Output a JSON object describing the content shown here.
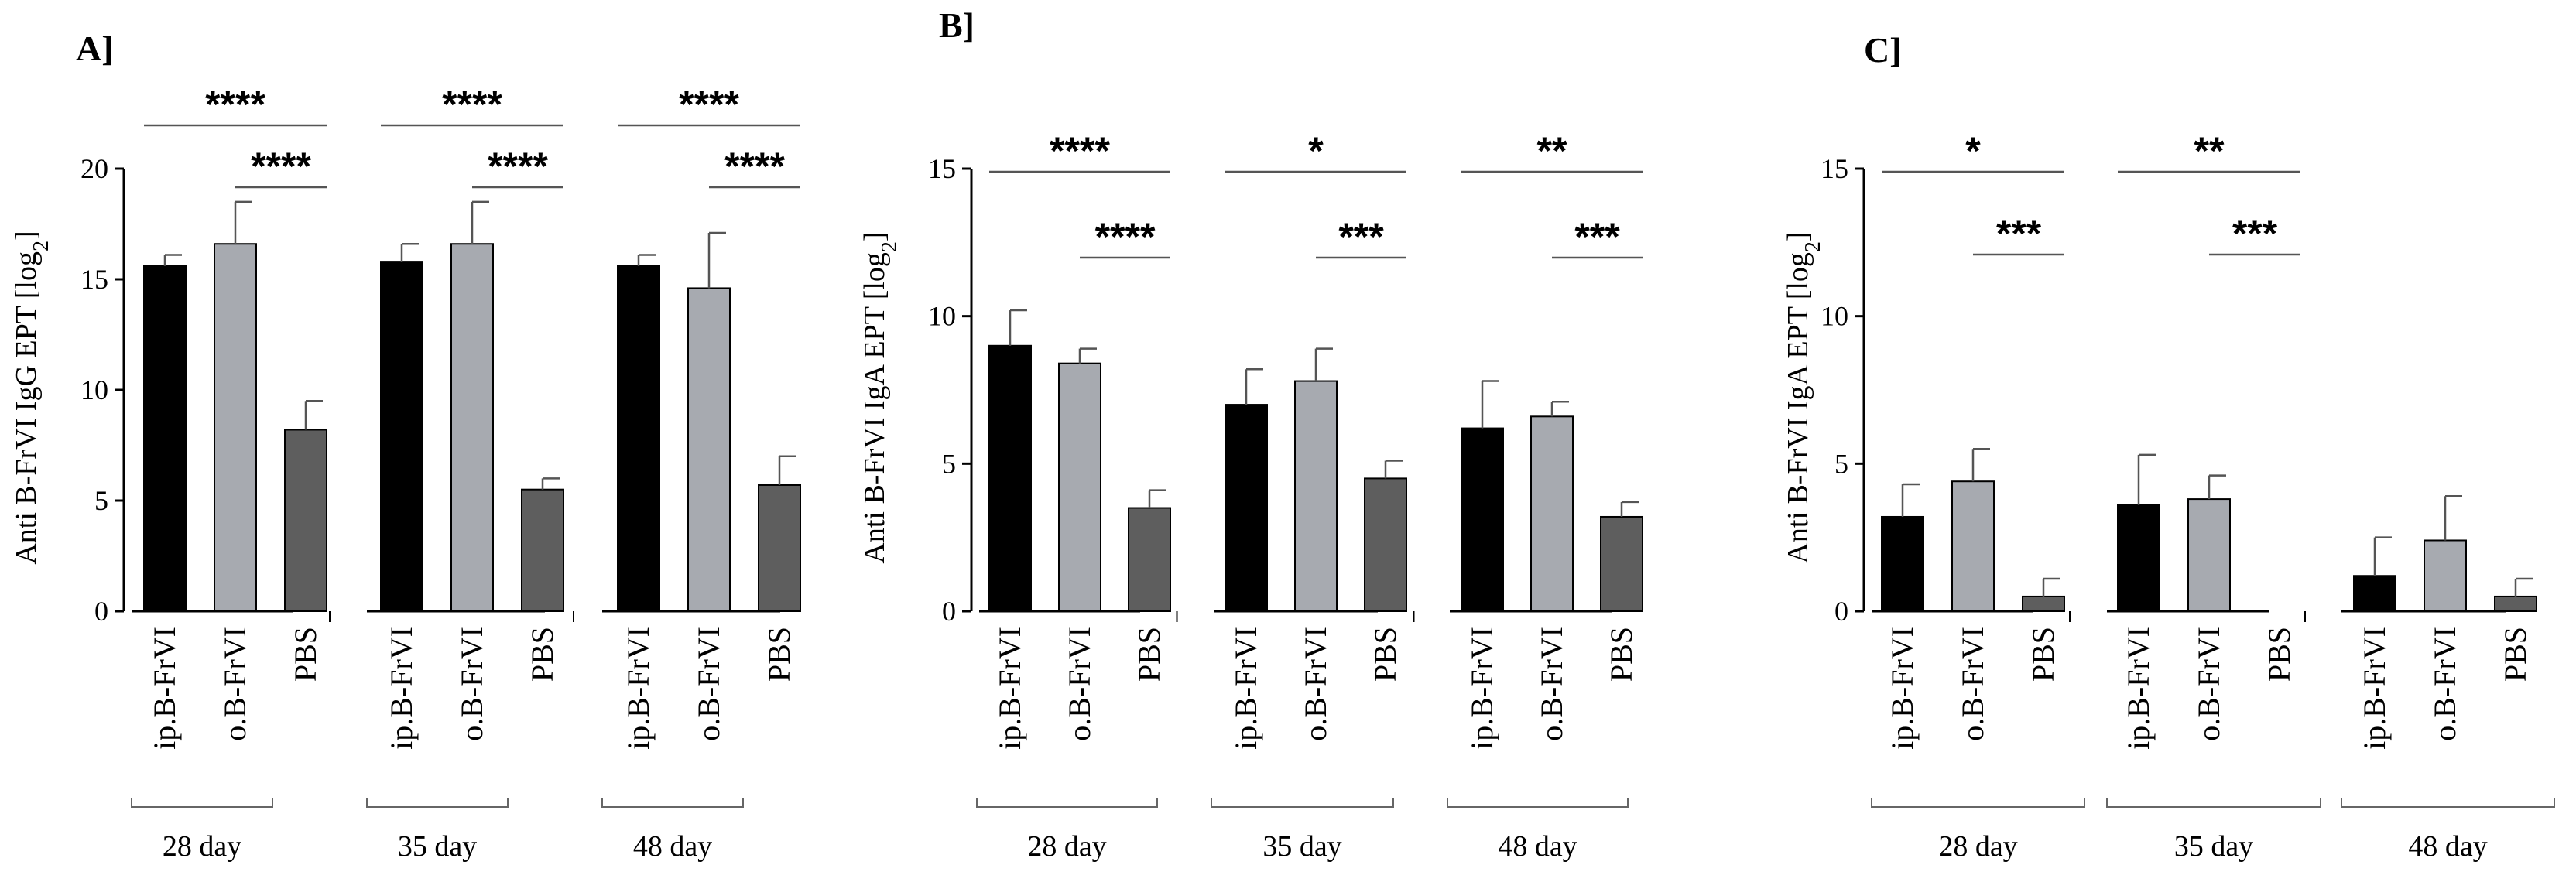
{
  "figure": {
    "categories": [
      "ip.B-FrVI",
      "o.B-FrVI",
      "PBS"
    ],
    "groups": [
      "28 day",
      "35 day",
      "48 day"
    ],
    "colors": {
      "ip.B-FrVI": "#000000",
      "o.B-FrVI": "#a7aab0",
      "PBS": "#5e5e5e"
    }
  },
  "chart_data": [
    {
      "type": "bar",
      "panel": "A]",
      "ylabel": "Anti B-FrVI IgG EPT [log2]",
      "ylabel_main": "Anti B-FrVI IgG EPT [log",
      "ylabel_sub": "2",
      "ylabel_close": "]",
      "ylim": [
        0,
        20
      ],
      "yticks": [
        0,
        5,
        10,
        15,
        20
      ],
      "groups": [
        "28 day",
        "35 day",
        "48 day"
      ],
      "categories": [
        "ip.B-FrVI",
        "o.B-FrVI",
        "PBS"
      ],
      "series": [
        {
          "name": "ip.B-FrVI",
          "values": [
            15.6,
            15.8,
            15.6
          ],
          "errors": [
            0.5,
            0.8,
            0.5
          ]
        },
        {
          "name": "o.B-FrVI",
          "values": [
            16.6,
            16.6,
            14.6
          ],
          "errors": [
            1.9,
            1.9,
            2.5
          ]
        },
        {
          "name": "PBS",
          "values": [
            8.2,
            5.5,
            5.7
          ],
          "errors": [
            1.3,
            0.5,
            1.3
          ]
        }
      ],
      "significance": [
        {
          "group": "28 day",
          "from": "ip.B-FrVI",
          "to": "PBS",
          "label": "****"
        },
        {
          "group": "28 day",
          "from": "o.B-FrVI",
          "to": "PBS",
          "label": "****"
        },
        {
          "group": "35 day",
          "from": "ip.B-FrVI",
          "to": "PBS",
          "label": "****"
        },
        {
          "group": "35 day",
          "from": "o.B-FrVI",
          "to": "PBS",
          "label": "****"
        },
        {
          "group": "48 day",
          "from": "ip.B-FrVI",
          "to": "PBS",
          "label": "****"
        },
        {
          "group": "48 day",
          "from": "o.B-FrVI",
          "to": "PBS",
          "label": "****"
        }
      ]
    },
    {
      "type": "bar",
      "panel": "B]",
      "ylabel": "Anti B-FrVI IgA EPT [log2]",
      "ylabel_main": "Anti B-FrVI IgA EPT [log",
      "ylabel_sub": "2",
      "ylabel_close": "]",
      "ylim": [
        0,
        15
      ],
      "yticks": [
        0,
        5,
        10,
        15
      ],
      "groups": [
        "28 day",
        "35 day",
        "48 day"
      ],
      "categories": [
        "ip.B-FrVI",
        "o.B-FrVI",
        "PBS"
      ],
      "series": [
        {
          "name": "ip.B-FrVI",
          "values": [
            9.0,
            7.0,
            6.2
          ],
          "errors": [
            1.2,
            1.2,
            1.6
          ]
        },
        {
          "name": "o.B-FrVI",
          "values": [
            8.4,
            7.8,
            6.6
          ],
          "errors": [
            0.5,
            1.1,
            0.5
          ]
        },
        {
          "name": "PBS",
          "values": [
            3.5,
            4.5,
            3.2
          ],
          "errors": [
            0.6,
            0.6,
            0.5
          ]
        }
      ],
      "significance": [
        {
          "group": "28 day",
          "from": "ip.B-FrVI",
          "to": "PBS",
          "label": "****"
        },
        {
          "group": "28 day",
          "from": "o.B-FrVI",
          "to": "PBS",
          "label": "****"
        },
        {
          "group": "35 day",
          "from": "ip.B-FrVI",
          "to": "PBS",
          "label": "*"
        },
        {
          "group": "35 day",
          "from": "o.B-FrVI",
          "to": "PBS",
          "label": "***"
        },
        {
          "group": "48 day",
          "from": "ip.B-FrVI",
          "to": "PBS",
          "label": "**"
        },
        {
          "group": "48 day",
          "from": "o.B-FrVI",
          "to": "PBS",
          "label": "***"
        }
      ]
    },
    {
      "type": "bar",
      "panel": "C]",
      "ylabel": "Anti B-FrVI IgA EPT [log2]",
      "ylabel_main": "Anti B-FrVI IgA EPT [log",
      "ylabel_sub": "2",
      "ylabel_close": "]",
      "ylim": [
        0,
        15
      ],
      "yticks": [
        0,
        5,
        10,
        15
      ],
      "groups": [
        "28 day",
        "35 day",
        "48 day"
      ],
      "categories": [
        "ip.B-FrVI",
        "o.B-FrVI",
        "PBS"
      ],
      "series": [
        {
          "name": "ip.B-FrVI",
          "values": [
            3.2,
            3.6,
            1.2
          ],
          "errors": [
            1.1,
            1.7,
            1.3
          ]
        },
        {
          "name": "o.B-FrVI",
          "values": [
            4.4,
            3.8,
            2.4
          ],
          "errors": [
            1.1,
            0.8,
            1.5
          ]
        },
        {
          "name": "PBS",
          "values": [
            0.5,
            0,
            0.5
          ],
          "errors": [
            0.6,
            0,
            0.6
          ]
        }
      ],
      "significance": [
        {
          "group": "28 day",
          "from": "ip.B-FrVI",
          "to": "PBS",
          "label": "*"
        },
        {
          "group": "28 day",
          "from": "o.B-FrVI",
          "to": "PBS",
          "label": "***"
        },
        {
          "group": "35 day",
          "from": "ip.B-FrVI",
          "to": "PBS",
          "label": "**"
        },
        {
          "group": "35 day",
          "from": "o.B-FrVI",
          "to": "PBS",
          "label": "***"
        }
      ]
    }
  ]
}
